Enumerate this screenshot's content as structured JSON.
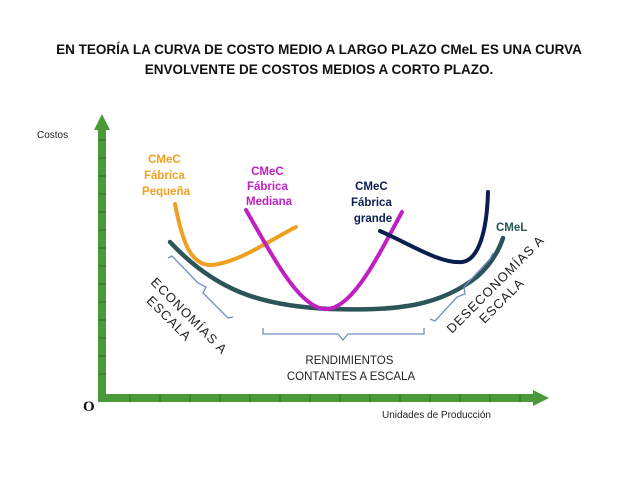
{
  "title": {
    "line1": "EN TEORÍA LA CURVA DE COSTO MEDIO A LARGO PLAZO CMeL ES UNA CURVA",
    "line2": "ENVOLVENTE DE COSTOS MEDIOS A CORTO PLAZO."
  },
  "axes": {
    "y_label": "Costos",
    "x_label": "Unidades de Producción",
    "origin": "O"
  },
  "curves": {
    "small": {
      "line1": "CMeC",
      "line2": "Fábrica",
      "line3": "Pequeña",
      "color": "#f0a020"
    },
    "medium": {
      "line1": "CMeC",
      "line2": "Fábrica",
      "line3": "Mediana",
      "color": "#c020c0"
    },
    "large": {
      "line1": "CMeC",
      "line2": "Fábrica",
      "line3": "grande",
      "color": "#0a1f4f"
    },
    "long_run": {
      "label": "CMeL",
      "color": "#2b5559"
    }
  },
  "ranges": {
    "economies": {
      "line1": "ECONOMÍAS A",
      "line2": "ESCALA"
    },
    "constant": {
      "line1": "RENDIMIENTOS",
      "line2": "CONTANTES A ESCALA"
    },
    "diseconomies": {
      "line1": "DESECONOMÍAS A",
      "line2": "ESCALA"
    }
  },
  "colors": {
    "axis": "#4a9a3a",
    "bracket": "#6f8fc0"
  }
}
